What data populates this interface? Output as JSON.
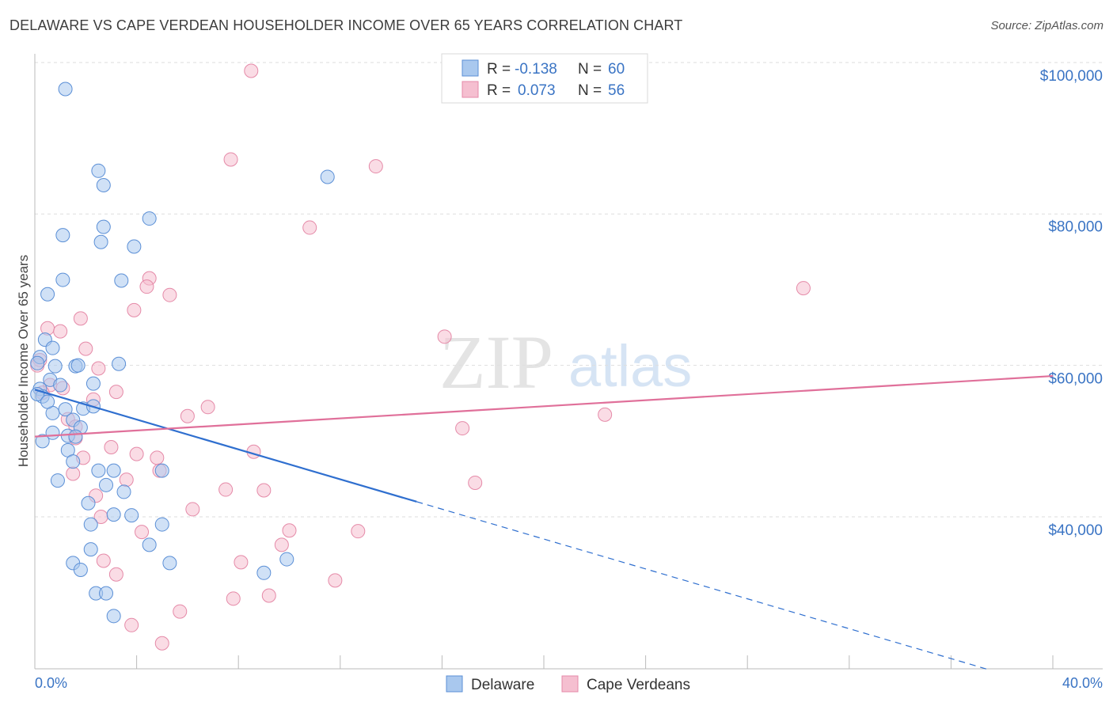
{
  "title": "DELAWARE VS CAPE VERDEAN HOUSEHOLDER INCOME OVER 65 YEARS CORRELATION CHART",
  "source": "Source: ZipAtlas.com",
  "watermark": {
    "zip": "ZIP",
    "atlas": "atlas"
  },
  "colors": {
    "delaware_fill": "#a9c8ee",
    "delaware_stroke": "#5b8fd6",
    "delaware_line": "#2f6fcf",
    "cape_fill": "#f5bfd0",
    "cape_stroke": "#e58aa8",
    "cape_line": "#e0709a",
    "tick_label": "#3a74c4"
  },
  "legend": {
    "rows": [
      {
        "r_label": "R =",
        "r_value": "-0.138",
        "n_label": "N =",
        "n_value": "60"
      },
      {
        "r_label": "R =",
        "r_value": "0.073",
        "n_label": "N =",
        "n_value": "56"
      }
    ]
  },
  "bottom_legend": [
    "Delaware",
    "Cape Verdeans"
  ],
  "chart_data": {
    "type": "scatter",
    "title": "DELAWARE VS CAPE VERDEAN HOUSEHOLDER INCOME OVER 65 YEARS CORRELATION CHART",
    "xlabel": "",
    "ylabel": "Householder Income Over 65 years",
    "xlim": [
      0,
      40
    ],
    "ylim": [
      20000,
      102000
    ],
    "x_tick_labels": [
      "0.0%",
      "40.0%"
    ],
    "y_ticks": [
      40000,
      60000,
      80000,
      100000
    ],
    "y_tick_labels": [
      "$40,000",
      "$60,000",
      "$80,000",
      "$100,000"
    ],
    "grid": true,
    "legend_position": "top-center",
    "series": [
      {
        "name": "Delaware",
        "r": -0.138,
        "n": 60,
        "trend": {
          "x0": 0,
          "y0": 56800,
          "x1": 15,
          "y1": 42000,
          "dashed_to_x": 37.5,
          "dashed_to_y": 19800
        },
        "points": [
          [
            1.2,
            96500
          ],
          [
            2.5,
            85700
          ],
          [
            2.7,
            83800
          ],
          [
            11.5,
            84900
          ],
          [
            4.5,
            79400
          ],
          [
            1.1,
            77200
          ],
          [
            2.7,
            78300
          ],
          [
            2.6,
            76300
          ],
          [
            3.9,
            75700
          ],
          [
            1.1,
            71300
          ],
          [
            3.4,
            71200
          ],
          [
            0.5,
            69400
          ],
          [
            0.4,
            63400
          ],
          [
            0.7,
            62300
          ],
          [
            0.2,
            61100
          ],
          [
            0.1,
            60300
          ],
          [
            0.8,
            59900
          ],
          [
            1.6,
            59900
          ],
          [
            1.7,
            60000
          ],
          [
            3.3,
            60200
          ],
          [
            0.6,
            58100
          ],
          [
            1.0,
            57400
          ],
          [
            0.2,
            56900
          ],
          [
            2.3,
            57600
          ],
          [
            0.3,
            55900
          ],
          [
            1.9,
            54300
          ],
          [
            2.3,
            54600
          ],
          [
            0.7,
            53700
          ],
          [
            1.2,
            54200
          ],
          [
            1.5,
            52800
          ],
          [
            1.8,
            51800
          ],
          [
            0.7,
            51100
          ],
          [
            1.3,
            50700
          ],
          [
            1.6,
            50600
          ],
          [
            0.3,
            50000
          ],
          [
            1.3,
            48800
          ],
          [
            1.5,
            47300
          ],
          [
            0.9,
            44800
          ],
          [
            2.5,
            46100
          ],
          [
            3.1,
            46100
          ],
          [
            5.0,
            46100
          ],
          [
            2.8,
            44200
          ],
          [
            3.5,
            43300
          ],
          [
            2.1,
            41800
          ],
          [
            3.1,
            40300
          ],
          [
            3.8,
            40200
          ],
          [
            2.2,
            39000
          ],
          [
            5.0,
            39000
          ],
          [
            4.5,
            36300
          ],
          [
            2.2,
            35700
          ],
          [
            1.5,
            33900
          ],
          [
            5.3,
            33900
          ],
          [
            9.0,
            32600
          ],
          [
            9.9,
            34400
          ],
          [
            1.8,
            33000
          ],
          [
            2.4,
            29900
          ],
          [
            2.8,
            29900
          ],
          [
            3.1,
            26900
          ],
          [
            0.1,
            56200
          ],
          [
            0.5,
            55200
          ]
        ]
      },
      {
        "name": "Cape Verdeans",
        "r": 0.073,
        "n": 56,
        "trend": {
          "x0": 0,
          "y0": 50600,
          "x1": 40,
          "y1": 58600
        },
        "points": [
          [
            8.5,
            98900
          ],
          [
            7.7,
            87200
          ],
          [
            13.4,
            86300
          ],
          [
            10.8,
            78200
          ],
          [
            30.2,
            70200
          ],
          [
            4.5,
            71500
          ],
          [
            4.4,
            70400
          ],
          [
            5.3,
            69300
          ],
          [
            3.9,
            67300
          ],
          [
            1.8,
            66200
          ],
          [
            0.5,
            64900
          ],
          [
            1.0,
            64500
          ],
          [
            16.1,
            63800
          ],
          [
            2.0,
            62200
          ],
          [
            0.2,
            60700
          ],
          [
            0.1,
            60000
          ],
          [
            2.5,
            59600
          ],
          [
            0.6,
            57400
          ],
          [
            1.1,
            57000
          ],
          [
            0.3,
            56400
          ],
          [
            3.2,
            56500
          ],
          [
            2.3,
            55500
          ],
          [
            6.8,
            54500
          ],
          [
            6.0,
            53300
          ],
          [
            22.4,
            53500
          ],
          [
            1.3,
            52900
          ],
          [
            1.6,
            51900
          ],
          [
            16.8,
            51700
          ],
          [
            1.6,
            50400
          ],
          [
            3.0,
            49200
          ],
          [
            8.6,
            48600
          ],
          [
            4.0,
            48300
          ],
          [
            4.8,
            47800
          ],
          [
            1.9,
            47800
          ],
          [
            1.5,
            45700
          ],
          [
            3.6,
            44900
          ],
          [
            4.9,
            46100
          ],
          [
            17.3,
            44500
          ],
          [
            7.5,
            43600
          ],
          [
            9.0,
            43500
          ],
          [
            6.2,
            41000
          ],
          [
            2.4,
            42800
          ],
          [
            2.6,
            40000
          ],
          [
            4.2,
            38000
          ],
          [
            10.0,
            38200
          ],
          [
            12.7,
            38100
          ],
          [
            9.7,
            36300
          ],
          [
            2.7,
            34200
          ],
          [
            8.1,
            34000
          ],
          [
            3.2,
            32400
          ],
          [
            11.8,
            31600
          ],
          [
            9.2,
            29600
          ],
          [
            7.8,
            29200
          ],
          [
            5.7,
            27500
          ],
          [
            3.8,
            25700
          ],
          [
            5.0,
            23300
          ]
        ]
      }
    ]
  }
}
